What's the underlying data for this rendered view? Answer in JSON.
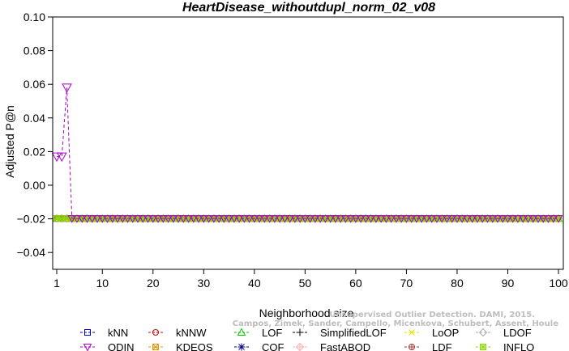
{
  "chart_data": {
    "type": "line",
    "title": "HeartDisease_withoutdupl_norm_02_v08",
    "xlabel": "Neighborhood size",
    "ylabel": "Adjusted P@n",
    "xlim": [
      1,
      100
    ],
    "ylim": [
      -0.05,
      0.1
    ],
    "x_ticks": [
      1,
      10,
      20,
      30,
      40,
      50,
      60,
      70,
      80,
      90,
      100
    ],
    "y_ticks": [
      -0.04,
      -0.02,
      0.0,
      0.02,
      0.04,
      0.06,
      0.08,
      0.1
    ],
    "x_tick_labels": [
      "1",
      "10",
      "20",
      "30",
      "40",
      "50",
      "60",
      "70",
      "80",
      "90",
      "100"
    ],
    "y_tick_labels": [
      "−0.04",
      "−0.02",
      "0.00",
      "0.02",
      "0.04",
      "0.06",
      "0.08",
      "0.10"
    ],
    "grid": false,
    "legend_position": "bottom",
    "baseline_value": -0.0198,
    "series": [
      {
        "name": "kNN",
        "color": "#0000cc",
        "marker": "square",
        "row": 0,
        "col": 0,
        "value": -0.0198
      },
      {
        "name": "kNNW",
        "color": "#cc0000",
        "marker": "circle",
        "row": 0,
        "col": 1,
        "value": -0.0198
      },
      {
        "name": "LOF",
        "color": "#00cc00",
        "marker": "triangle-up",
        "row": 0,
        "col": 2,
        "value": -0.0198
      },
      {
        "name": "SimplifiedLOF",
        "color": "#000000",
        "marker": "plus",
        "row": 0,
        "col": 3,
        "value": -0.0198
      },
      {
        "name": "LoOP",
        "color": "#e6e600",
        "marker": "x",
        "row": 0,
        "col": 4,
        "value": -0.0198
      },
      {
        "name": "LDOF",
        "color": "#aaaaaa",
        "marker": "diamond",
        "row": 0,
        "col": 5,
        "value": -0.0198
      },
      {
        "name": "ODIN",
        "color": "#aa00cc",
        "marker": "triangle-down",
        "row": 1,
        "col": 0,
        "points": [
          [
            1,
            0.017
          ],
          [
            2,
            0.017
          ],
          [
            3,
            0.058
          ],
          [
            4,
            -0.0198
          ]
        ],
        "value": -0.0198
      },
      {
        "name": "KDEOS",
        "color": "#e69500",
        "marker": "square-x",
        "row": 1,
        "col": 1,
        "value": -0.0198
      },
      {
        "name": "COF",
        "color": "#000080",
        "marker": "asterisk",
        "row": 1,
        "col": 2,
        "value": -0.0198
      },
      {
        "name": "FastABOD",
        "color": "#ffb0b0",
        "marker": "diamond-plus",
        "row": 1,
        "col": 3,
        "value": -0.0198
      },
      {
        "name": "LDF",
        "color": "#aa3333",
        "marker": "circle-plus",
        "row": 1,
        "col": 4,
        "value": -0.0198
      },
      {
        "name": "INFLO",
        "color": "#88dd00",
        "marker": "square-star",
        "row": 1,
        "col": 5,
        "value": -0.0198
      }
    ]
  },
  "watermark": {
    "line1": "Unsupervised Outlier Detection. DAMI, 2015.",
    "line2": "Campos, Zimek, Sander, Campello, Micenkova, Schubert, Assent, Houle"
  }
}
